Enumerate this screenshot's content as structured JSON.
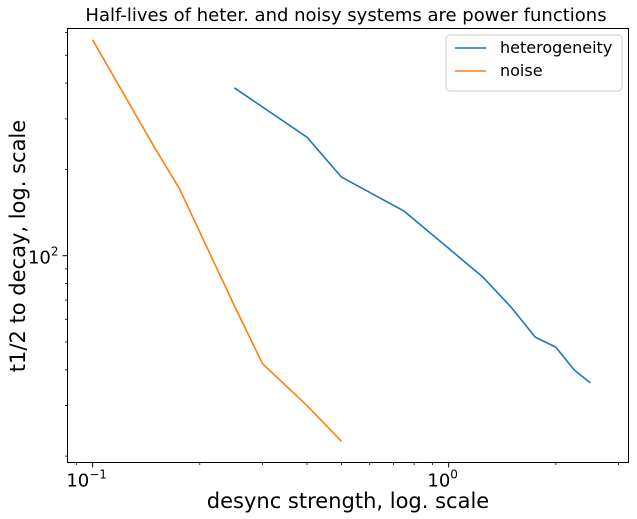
{
  "chart_data": {
    "type": "line",
    "title": "Half-lives of heter. and noisy systems are power functions",
    "xlabel": "desync strength, log. scale",
    "ylabel": "t1/2 to decay, log. scale",
    "xscale": "log",
    "yscale": "log",
    "xlim": [
      0.085,
      3.2
    ],
    "ylim": [
      19,
      620
    ],
    "x_major_ticks": [
      {
        "value": 0.1,
        "base": "10",
        "exp": "−1"
      },
      {
        "value": 1,
        "base": "10",
        "exp": "0"
      }
    ],
    "y_major_ticks": [
      {
        "value": 100,
        "base": "10",
        "exp": "2"
      }
    ],
    "legend_position": "upper right",
    "grid": false,
    "series": [
      {
        "name": "heterogeneity",
        "color": "#1f77b4",
        "x": [
          0.25,
          0.4,
          0.5,
          0.75,
          1.0,
          1.25,
          1.5,
          1.75,
          2.0,
          2.25,
          2.5
        ],
        "y": [
          385,
          259,
          188,
          143,
          106,
          84,
          66,
          52,
          48,
          40,
          36
        ]
      },
      {
        "name": "noise",
        "color": "#ff7f0e",
        "x": [
          0.1,
          0.15,
          0.175,
          0.25,
          0.3,
          0.4,
          0.5
        ],
        "y": [
          566,
          236,
          172,
          67,
          42,
          30,
          22.5
        ]
      }
    ]
  }
}
